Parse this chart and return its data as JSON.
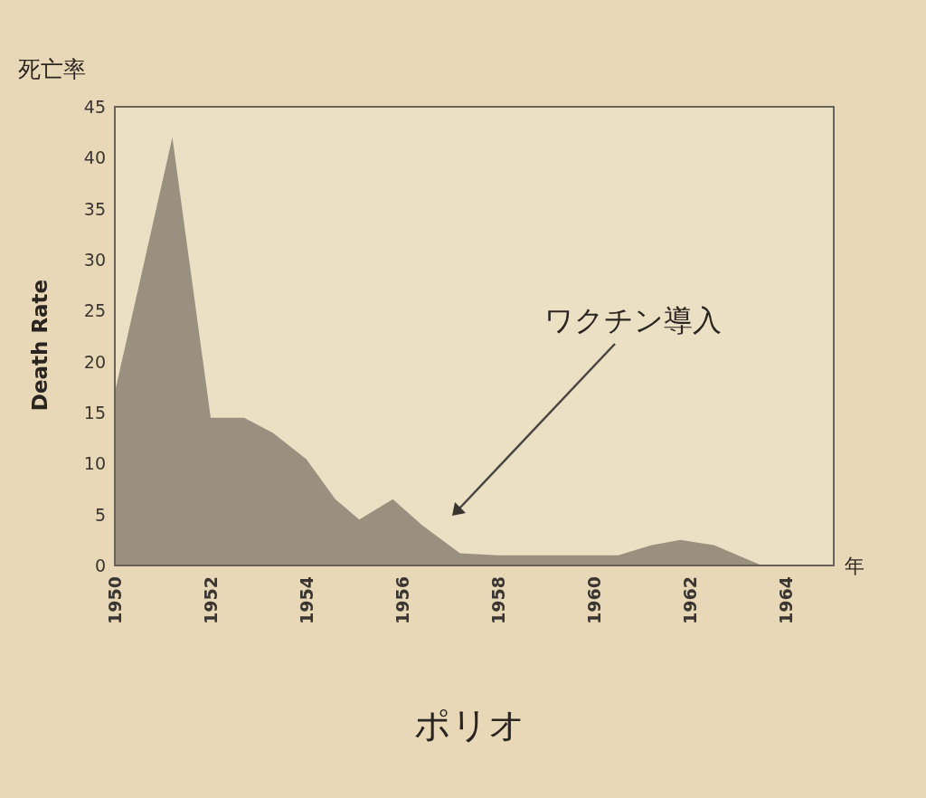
{
  "chart_data": {
    "type": "area",
    "title": "ポリオ",
    "ylabel": "Death Rate",
    "xlabel": "年",
    "annotations": [
      "死亡率",
      "ワクチン導入"
    ],
    "x": [
      1950,
      1951.2,
      1952,
      1952.7,
      1953.3,
      1954,
      1954.6,
      1955.1,
      1955.8,
      1956.4,
      1957.2,
      1958,
      1960.5,
      1961.2,
      1961.8,
      1962.5,
      1963,
      1963.5
    ],
    "series": [
      {
        "color": "#9a9080",
        "values": [
          17,
          42,
          14.5,
          14.5,
          13,
          10.4,
          6.5,
          4.5,
          6.5,
          4,
          1.2,
          1,
          1,
          2,
          2.5,
          2,
          1,
          0
        ]
      }
    ],
    "xlim": [
      1950,
      1965
    ],
    "ylim": [
      0,
      45
    ],
    "xticks": [
      1950,
      1952,
      1954,
      1956,
      1958,
      1960,
      1962,
      1964
    ],
    "yticks": [
      0,
      5,
      10,
      15,
      20,
      25,
      30,
      35,
      40,
      45
    ],
    "grid": false
  }
}
